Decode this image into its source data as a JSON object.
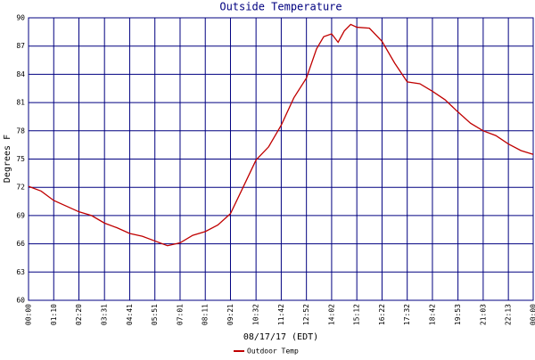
{
  "chart_data": {
    "type": "line",
    "title": "Outside Temperature",
    "y_label": "Degrees F",
    "x_label": "08/17/17 (EDT)",
    "xlim": [
      0,
      1402
    ],
    "ylim": [
      60,
      90
    ],
    "xticks": [
      {
        "value": 0,
        "label": "00:00"
      },
      {
        "value": 70,
        "label": "01:10"
      },
      {
        "value": 140,
        "label": "02:20"
      },
      {
        "value": 211,
        "label": "03:31"
      },
      {
        "value": 281,
        "label": "04:41"
      },
      {
        "value": 351,
        "label": "05:51"
      },
      {
        "value": 421,
        "label": "07:01"
      },
      {
        "value": 491,
        "label": "08:11"
      },
      {
        "value": 561,
        "label": "09:21"
      },
      {
        "value": 632,
        "label": "10:32"
      },
      {
        "value": 702,
        "label": "11:42"
      },
      {
        "value": 772,
        "label": "12:52"
      },
      {
        "value": 842,
        "label": "14:02"
      },
      {
        "value": 912,
        "label": "15:12"
      },
      {
        "value": 982,
        "label": "16:22"
      },
      {
        "value": 1052,
        "label": "17:32"
      },
      {
        "value": 1122,
        "label": "18:42"
      },
      {
        "value": 1193,
        "label": "19:53"
      },
      {
        "value": 1263,
        "label": "21:03"
      },
      {
        "value": 1333,
        "label": "22:13"
      },
      {
        "value": 1402,
        "label": "00:00"
      }
    ],
    "yticks": [
      60,
      63,
      66,
      69,
      72,
      75,
      78,
      81,
      84,
      87,
      90
    ],
    "grid": true,
    "x": [
      0,
      35,
      70,
      105,
      140,
      175,
      211,
      246,
      281,
      316,
      351,
      386,
      421,
      456,
      491,
      526,
      561,
      596,
      632,
      667,
      702,
      737,
      772,
      800,
      820,
      842,
      860,
      877,
      895,
      912,
      947,
      982,
      1017,
      1052,
      1087,
      1122,
      1157,
      1193,
      1228,
      1263,
      1298,
      1333,
      1368,
      1402
    ],
    "series": [
      {
        "name": "Outdoor Temp",
        "color": "#c00000",
        "values": [
          72.1,
          71.6,
          70.6,
          70.0,
          69.4,
          69.0,
          68.2,
          67.7,
          67.1,
          66.8,
          66.3,
          65.8,
          66.1,
          66.9,
          67.3,
          68.0,
          69.2,
          72.0,
          74.9,
          76.3,
          78.6,
          81.5,
          83.6,
          86.7,
          88.0,
          88.3,
          87.4,
          88.6,
          89.3,
          89.0,
          88.9,
          87.5,
          85.2,
          83.2,
          83.0,
          82.2,
          81.3,
          80.0,
          78.8,
          78.0,
          77.5,
          76.6,
          75.9,
          75.5
        ]
      }
    ]
  }
}
